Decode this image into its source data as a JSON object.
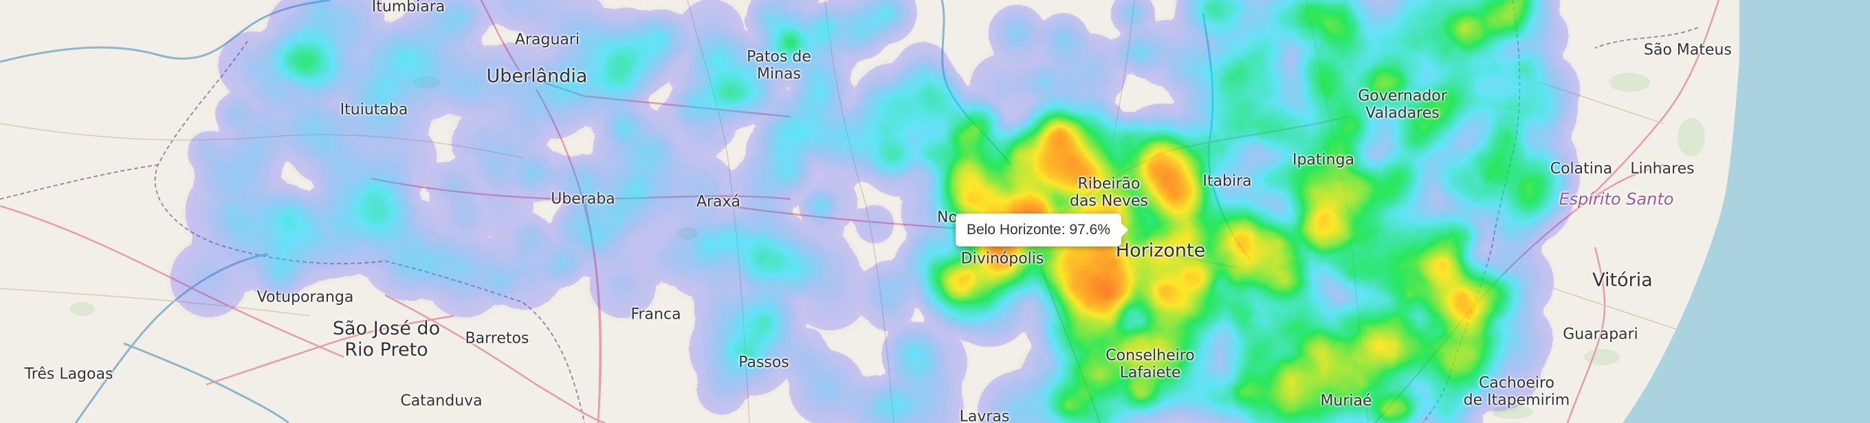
{
  "map": {
    "labels": {
      "itumbiara": "Itumbiara",
      "araguari": "Araguari",
      "uberlandia": "Uberlândia",
      "patos": "Patos de\nMinas",
      "ituiutaba": "Ituiutaba",
      "uberaba": "Uberaba",
      "araxa": "Araxá",
      "votuporanga": "Votuporanga",
      "sjrp": "São José do\nRio Preto",
      "barretos": "Barretos",
      "franca": "Franca",
      "tres_lagoas": "Três Lagoas",
      "catanduva": "Catanduva",
      "passos": "Passos",
      "lavras": "Lavras",
      "divinopolis": "Divinópolis",
      "horizonte": "Horizonte",
      "ribeirao": "Ribeirão\ndas Neves",
      "itabira": "Itabira",
      "ipatinga": "Ipatinga",
      "governador": "Governador\nValadares",
      "conselheiro": "Conselheiro\nLafaiete",
      "muriae": "Muriaé",
      "sao_mateus": "São Mateus",
      "colatina": "Colatina",
      "linhares": "Linhares",
      "espirito": "Espírito Santo",
      "vitoria": "Vitória",
      "guarapari": "Guarapari",
      "cachoeiro": "Cachoeiro\nde Itapemirim",
      "no": "No"
    },
    "colors": {
      "land": "#f2efe9",
      "ocean": "#aad3df",
      "highway": "#e892a2",
      "river": "#8cb7c9",
      "border": "#9e8aa5"
    }
  },
  "tooltip": {
    "text": "Belo Horizonte: 97.6%"
  }
}
